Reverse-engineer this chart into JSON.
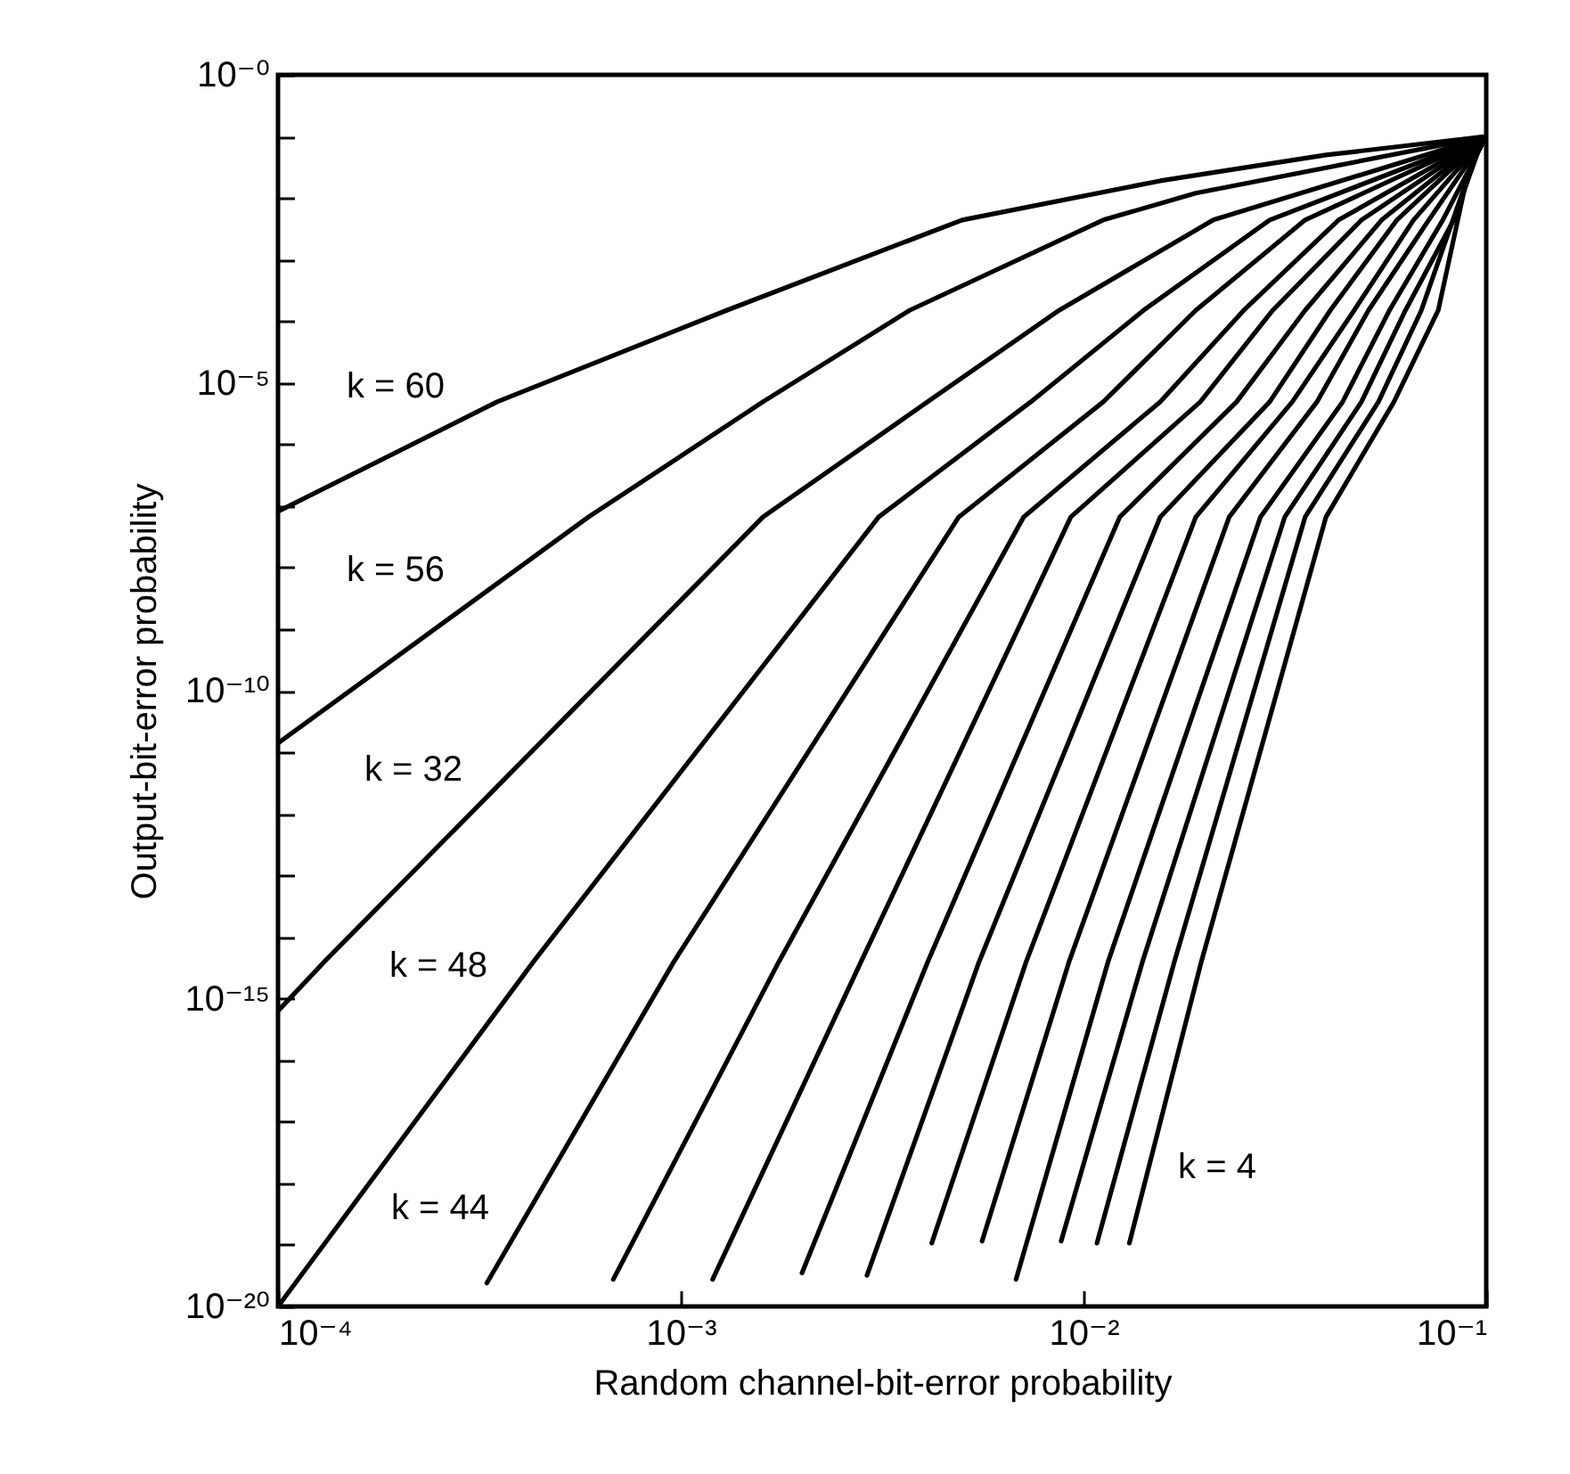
{
  "chart_data": {
    "type": "line",
    "log": "xy",
    "xlabel": "Random channel-bit-error probability",
    "ylabel": "Output-bit-error probability",
    "xlim": [
      0.0001,
      0.1
    ],
    "ylim": [
      1e-20,
      1
    ],
    "xticks": [
      {
        "value": 0.0001,
        "label": "10⁻⁴"
      },
      {
        "value": 0.001,
        "label": "10⁻³"
      },
      {
        "value": 0.01,
        "label": "10⁻²"
      },
      {
        "value": 0.1,
        "label": "10⁻¹"
      }
    ],
    "yticks": [
      {
        "value": 1e-20,
        "label": "10⁻²⁰"
      },
      {
        "value": 1e-19,
        "label": null
      },
      {
        "value": 1e-18,
        "label": null
      },
      {
        "value": 1e-17,
        "label": null
      },
      {
        "value": 1e-16,
        "label": null
      },
      {
        "value": 1e-15,
        "label": "10⁻¹⁵"
      },
      {
        "value": 1e-14,
        "label": null
      },
      {
        "value": 1e-13,
        "label": null
      },
      {
        "value": 1e-12,
        "label": null
      },
      {
        "value": 1e-11,
        "label": null
      },
      {
        "value": 1e-10,
        "label": "10⁻¹⁰"
      },
      {
        "value": 1e-09,
        "label": null
      },
      {
        "value": 1e-08,
        "label": null
      },
      {
        "value": 1e-07,
        "label": null
      },
      {
        "value": 1e-06,
        "label": null
      },
      {
        "value": 1e-05,
        "label": "10⁻⁵"
      },
      {
        "value": 0.0001,
        "label": null
      },
      {
        "value": 0.001,
        "label": null
      },
      {
        "value": 0.01,
        "label": null
      },
      {
        "value": 0.1,
        "label": null
      },
      {
        "value": 1,
        "label": "10⁻⁰"
      }
    ],
    "series": [
      {
        "color": "#000000",
        "x": [
          0.0001,
          0.00035,
          0.0013,
          0.005,
          0.0155,
          0.04,
          0.1
        ],
        "values": [
          8.1e-08,
          4.9e-06,
          0.00015,
          0.0044,
          0.019,
          0.05,
          0.1
        ]
      },
      {
        "color": "#000000",
        "x": [
          0.0001,
          0.00059,
          0.0016,
          0.0037,
          0.0112,
          0.019,
          0.1
        ],
        "values": [
          1.4e-11,
          6.6e-08,
          4.9e-06,
          0.00015,
          0.0044,
          0.012,
          0.1
        ]
      },
      {
        "color": "#000000",
        "x": [
          0.0001,
          0.00013,
          0.0016,
          0.0041,
          0.0087,
          0.021,
          0.1
        ],
        "values": [
          6.3e-16,
          3.9e-15,
          6.6e-08,
          4.9e-06,
          0.00015,
          0.0044,
          0.1
        ]
      },
      {
        "color": "#000000",
        "x": [
          0.0001,
          0.00043,
          0.0031,
          0.0074,
          0.0141,
          0.029,
          0.1
        ],
        "values": [
          1e-20,
          3.9e-15,
          6.6e-08,
          4.9e-06,
          0.00015,
          0.0044,
          0.1
        ]
      },
      {
        "color": "#000000",
        "x": [
          0.00033,
          0.00096,
          0.0049,
          0.0112,
          0.019,
          0.0355,
          0.1
        ],
        "values": [
          2.4e-20,
          3.9e-15,
          6.6e-08,
          4.9e-06,
          0.00015,
          0.0044,
          0.1
        ]
      },
      {
        "color": "#000000",
        "x": [
          0.00068,
          0.00175,
          0.0071,
          0.0155,
          0.025,
          0.043,
          0.1
        ],
        "values": [
          2.75e-20,
          3.9e-15,
          6.6e-08,
          4.9e-06,
          0.00015,
          0.0044,
          0.1
        ]
      },
      {
        "color": "#000000",
        "x": [
          0.0012,
          0.0028,
          0.0093,
          0.0195,
          0.0295,
          0.049,
          0.1
        ],
        "values": [
          2.75e-20,
          3.9e-15,
          6.6e-08,
          4.9e-06,
          0.00015,
          0.0044,
          0.1
        ]
      },
      {
        "color": "#000000",
        "x": [
          0.002,
          0.0041,
          0.0123,
          0.024,
          0.0355,
          0.055,
          0.1
        ],
        "values": [
          3.5e-20,
          3.9e-15,
          6.6e-08,
          4.9e-06,
          0.00015,
          0.0044,
          0.1
        ]
      },
      {
        "color": "#000000",
        "x": [
          0.0029,
          0.0055,
          0.0155,
          0.029,
          0.041,
          0.06,
          0.1
        ],
        "values": [
          3.2e-20,
          3.9e-15,
          6.6e-08,
          4.9e-06,
          0.00015,
          0.0044,
          0.1
        ]
      },
      {
        "color": "#000000",
        "x": [
          0.0042,
          0.0072,
          0.019,
          0.033,
          0.047,
          0.066,
          0.1
        ],
        "values": [
          1.07e-19,
          3.9e-15,
          6.6e-08,
          4.9e-06,
          0.00015,
          0.0044,
          0.1
        ]
      },
      {
        "color": "#000000",
        "x": [
          0.0056,
          0.0092,
          0.023,
          0.038,
          0.051,
          0.072,
          0.1
        ],
        "values": [
          1.15e-19,
          3.9e-15,
          6.6e-08,
          4.9e-06,
          0.00015,
          0.0044,
          0.1
        ]
      },
      {
        "color": "#000000",
        "x": [
          0.0068,
          0.0115,
          0.0275,
          0.044,
          0.0575,
          0.078,
          0.1
        ],
        "values": [
          2.75e-20,
          3.9e-15,
          6.6e-08,
          4.9e-06,
          0.00015,
          0.0044,
          0.1
        ]
      },
      {
        "color": "#000000",
        "x": [
          0.0088,
          0.014,
          0.0316,
          0.049,
          0.063,
          0.083,
          0.096
        ],
        "values": [
          1.15e-19,
          3.9e-15,
          6.6e-08,
          4.9e-06,
          0.00015,
          0.0044,
          0.063
        ]
      },
      {
        "color": "#000000",
        "x": [
          0.0108,
          0.0168,
          0.0355,
          0.054,
          0.069,
          0.093
        ],
        "values": [
          1.07e-19,
          3.9e-15,
          6.6e-08,
          4.9e-06,
          0.00015,
          0.04
        ]
      },
      {
        "color": "#000000",
        "x": [
          0.013,
          0.0196,
          0.04,
          0.059,
          0.076,
          0.09
        ],
        "values": [
          1.07e-19,
          3.9e-15,
          6.6e-08,
          4.9e-06,
          0.00015,
          0.025
        ]
      }
    ],
    "annotations": [
      "k = 60",
      "k = 56",
      "k = 32",
      "k = 48",
      "k = 44",
      "k = 4"
    ]
  }
}
